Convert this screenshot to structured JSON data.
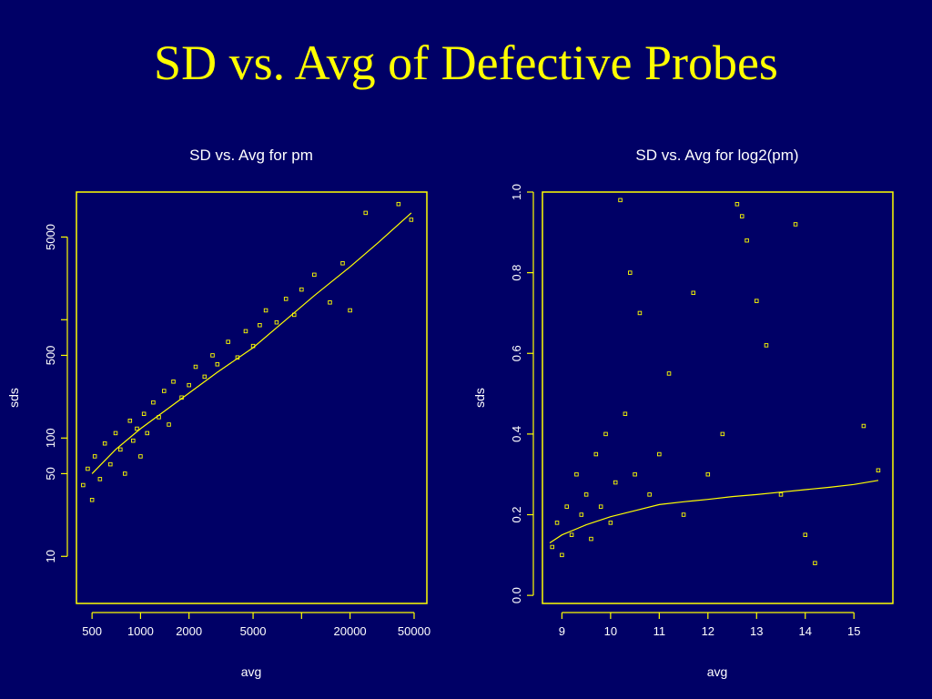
{
  "slide": {
    "title": "SD vs. Avg of Defective Probes"
  },
  "colors": {
    "background": "#000066",
    "accent": "#ffff00",
    "text": "#ffffff"
  },
  "chart_data": [
    {
      "type": "scatter",
      "title": "SD vs. Avg for pm",
      "xlabel": "avg",
      "ylabel": "sds",
      "xscale": "log",
      "yscale": "log",
      "xlim": [
        400,
        60000
      ],
      "ylim": [
        4,
        12000
      ],
      "xticks": [
        500,
        1000,
        2000,
        5000,
        20000,
        50000
      ],
      "xtick_labels": [
        "500",
        "1000",
        "2000",
        "5000",
        "20000",
        "50000"
      ],
      "xticks_minor": [
        10000
      ],
      "yticks": [
        10,
        50,
        100,
        500,
        5000
      ],
      "ytick_labels": [
        "10",
        "50",
        "100",
        "500",
        "5000"
      ],
      "yticks_minor": [
        1000
      ],
      "fit_line": {
        "x": [
          500,
          700,
          1000,
          1500,
          2000,
          3000,
          5000,
          8000,
          12000,
          20000,
          30000,
          48000
        ],
        "y": [
          50,
          80,
          120,
          180,
          240,
          360,
          580,
          1000,
          1600,
          2800,
          4500,
          8000
        ]
      },
      "series": [
        {
          "x": [
            440,
            470,
            500,
            520,
            560,
            600,
            650,
            700,
            750,
            800,
            860,
            900,
            950,
            1000,
            1050,
            1100,
            1200,
            1300,
            1400,
            1500,
            1600,
            1800,
            2000,
            2200,
            2500,
            2800,
            3000,
            3500,
            4000,
            4500,
            5000,
            5500,
            6000,
            7000,
            8000,
            9000,
            10000,
            12000,
            15000,
            18000,
            20000,
            25000,
            40000,
            48000
          ],
          "y": [
            40,
            55,
            30,
            70,
            45,
            90,
            60,
            110,
            80,
            50,
            140,
            95,
            120,
            70,
            160,
            110,
            200,
            150,
            250,
            130,
            300,
            220,
            280,
            400,
            330,
            500,
            420,
            650,
            480,
            800,
            600,
            900,
            1200,
            950,
            1500,
            1100,
            1800,
            2400,
            1400,
            3000,
            1200,
            8000,
            9500,
            7000
          ]
        }
      ]
    },
    {
      "type": "scatter",
      "title": "SD vs. Avg for log2(pm)",
      "xlabel": "avg",
      "ylabel": "sds",
      "xlim": [
        8.6,
        15.8
      ],
      "ylim": [
        -0.02,
        1.0
      ],
      "xticks": [
        9,
        10,
        11,
        12,
        13,
        14,
        15
      ],
      "yticks": [
        0.0,
        0.2,
        0.4,
        0.6,
        0.8,
        1.0
      ],
      "ytick_labels": [
        "0.0",
        "0.2",
        "0.4",
        "0.6",
        "0.8",
        "1.0"
      ],
      "fit_line": {
        "x": [
          8.75,
          9.0,
          9.5,
          10.0,
          10.5,
          11.0,
          11.5,
          12.0,
          12.5,
          13.0,
          13.5,
          14.0,
          14.5,
          15.0,
          15.5
        ],
        "y": [
          0.13,
          0.15,
          0.175,
          0.195,
          0.21,
          0.225,
          0.232,
          0.238,
          0.245,
          0.25,
          0.256,
          0.262,
          0.268,
          0.275,
          0.285
        ]
      },
      "series": [
        {
          "x": [
            8.8,
            8.9,
            9.0,
            9.1,
            9.2,
            9.3,
            9.4,
            9.5,
            9.6,
            9.7,
            9.8,
            9.9,
            10.0,
            10.1,
            10.2,
            10.3,
            10.4,
            10.5,
            10.6,
            10.8,
            11.0,
            11.2,
            11.5,
            11.7,
            12.0,
            12.3,
            12.6,
            12.7,
            12.8,
            13.0,
            13.2,
            13.5,
            13.8,
            14.0,
            14.2,
            15.2,
            15.5
          ],
          "y": [
            0.12,
            0.18,
            0.1,
            0.22,
            0.15,
            0.3,
            0.2,
            0.25,
            0.14,
            0.35,
            0.22,
            0.4,
            0.18,
            0.28,
            0.98,
            0.45,
            0.8,
            0.3,
            0.7,
            0.25,
            0.35,
            0.55,
            0.2,
            0.75,
            0.3,
            0.4,
            0.97,
            0.94,
            0.88,
            0.73,
            0.62,
            0.25,
            0.92,
            0.15,
            0.08,
            0.42,
            0.31
          ]
        }
      ]
    }
  ]
}
